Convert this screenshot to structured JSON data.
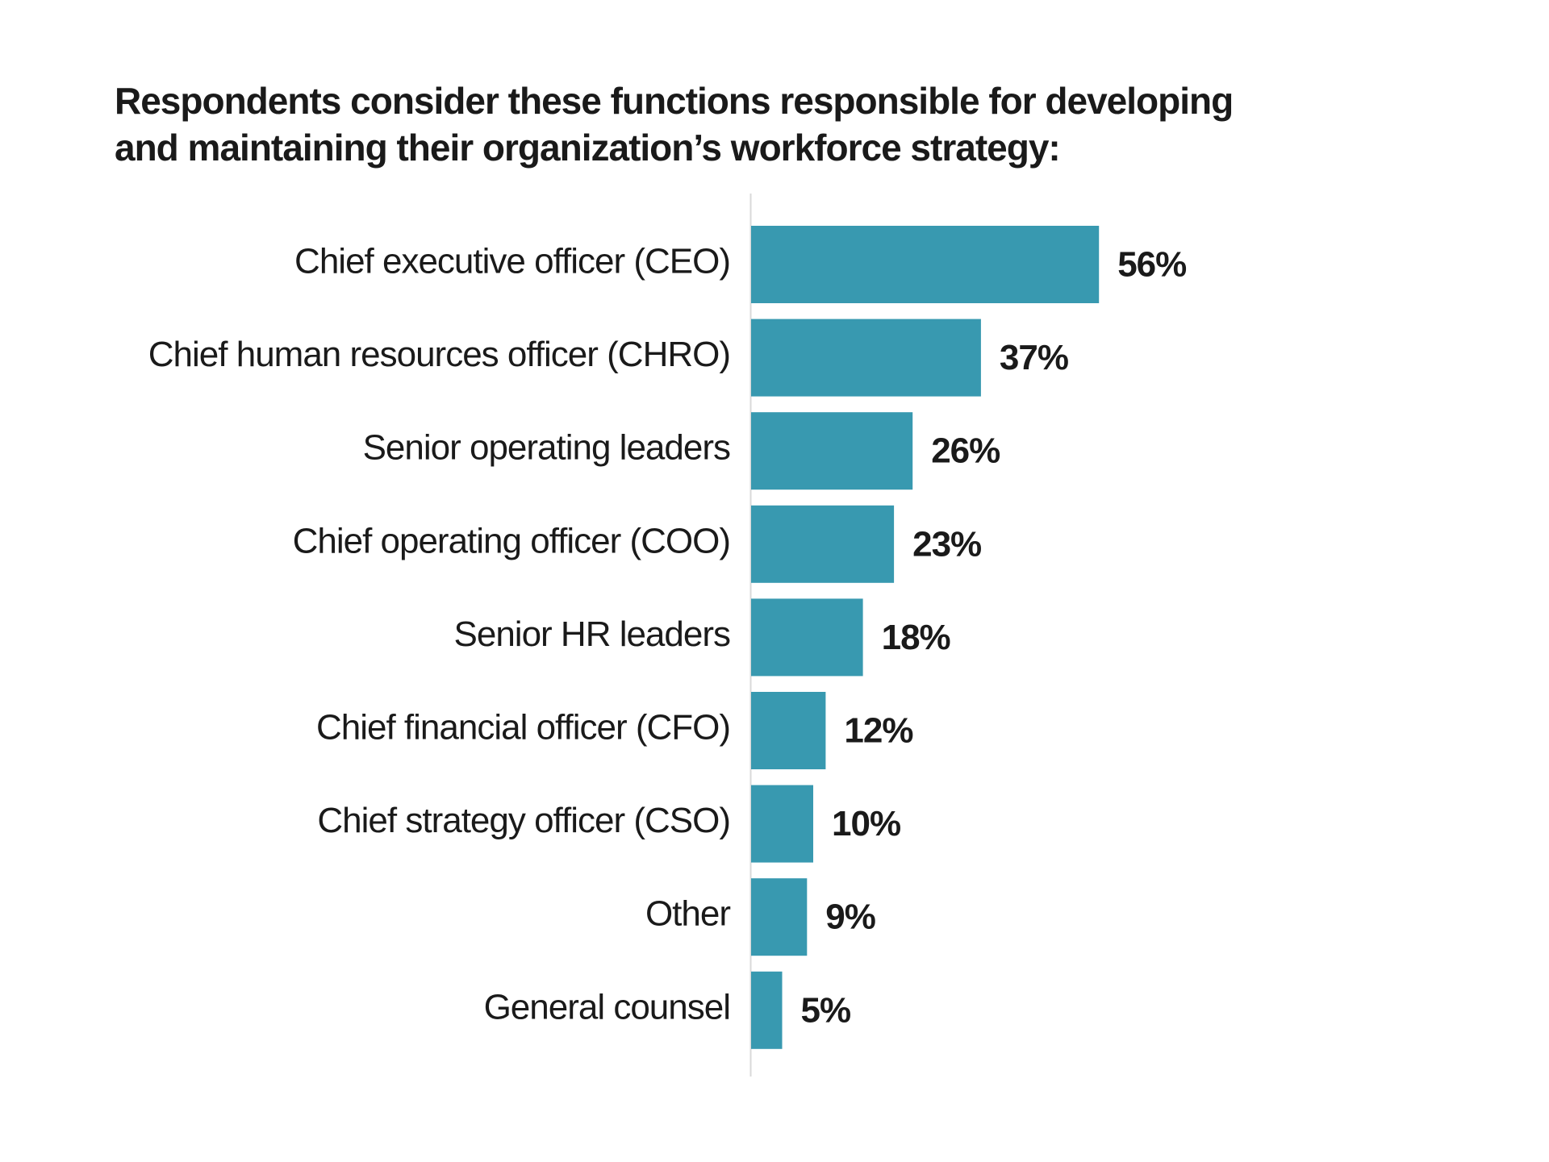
{
  "title_lines": [
    "Respondents consider these functions responsible for developing",
    "and maintaining their organization’s workforce strategy:"
  ],
  "colors": {
    "bar": "#3899b0",
    "axis": "#d9d9d9",
    "text": "#1a1a1a"
  },
  "chart_data": {
    "type": "bar",
    "orientation": "horizontal",
    "title": "Respondents consider these functions responsible for developing and maintaining their organization’s workforce strategy:",
    "categories": [
      "Chief executive officer (CEO)",
      "Chief human resources officer (CHRO)",
      "Senior operating leaders",
      "Chief operating officer (COO)",
      "Senior HR leaders",
      "Chief financial officer (CFO)",
      "Chief strategy officer (CSO)",
      "Other",
      "General counsel"
    ],
    "values": [
      56,
      37,
      26,
      23,
      18,
      12,
      10,
      9,
      5
    ],
    "value_labels": [
      "56%",
      "37%",
      "26%",
      "23%",
      "18%",
      "12%",
      "10%",
      "9%",
      "5%"
    ],
    "unit": "%",
    "xlabel": "",
    "ylabel": "",
    "grid": false,
    "legend": "none"
  }
}
